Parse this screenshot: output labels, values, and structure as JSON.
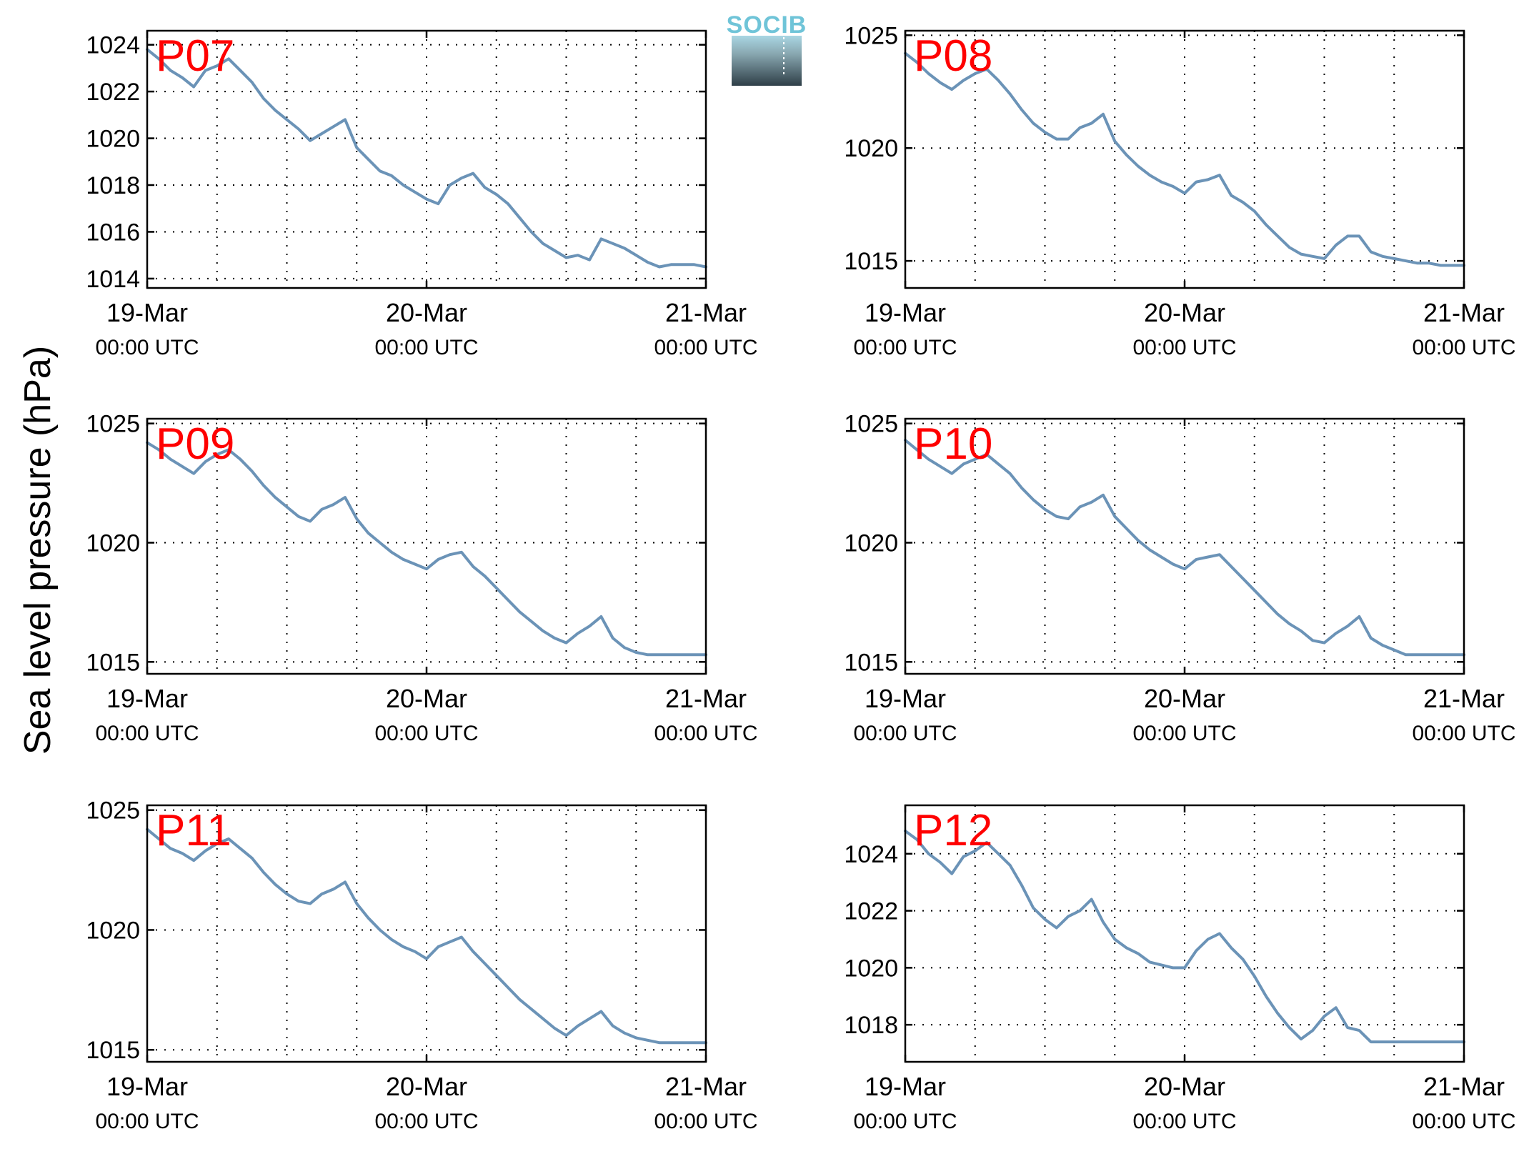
{
  "figure": {
    "ylabel": "Sea level pressure (hPa)",
    "logo": {
      "text": "SOCIB"
    }
  },
  "chart_data": [
    {
      "type": "line",
      "title": "P07",
      "xticks": [
        {
          "x": 0,
          "date": "19-Mar",
          "time": "00:00 UTC"
        },
        {
          "x": 24,
          "date": "20-Mar",
          "time": "00:00 UTC"
        },
        {
          "x": 48,
          "date": "21-Mar",
          "time": "00:00 UTC"
        }
      ],
      "xlim": [
        0,
        48
      ],
      "ylim": [
        1013.6,
        1024.6
      ],
      "yticks": [
        1014,
        1016,
        1018,
        1020,
        1022,
        1024
      ],
      "grid": true,
      "series": [
        {
          "x": [
            0,
            1,
            2,
            3,
            4,
            5,
            6,
            7,
            8,
            9,
            10,
            11,
            12,
            13,
            14,
            15,
            16,
            17,
            18,
            19,
            20,
            21,
            22,
            23,
            24,
            25,
            26,
            27,
            28,
            29,
            30,
            31,
            32,
            33,
            34,
            35,
            36,
            37,
            38,
            39,
            40,
            41,
            42,
            43,
            44,
            45,
            46,
            47,
            48
          ],
          "y": [
            1023.8,
            1023.4,
            1022.9,
            1022.6,
            1022.2,
            1022.9,
            1023.1,
            1023.4,
            1022.9,
            1022.4,
            1021.7,
            1021.2,
            1020.8,
            1020.4,
            1019.9,
            1020.2,
            1020.5,
            1020.8,
            1019.6,
            1019.1,
            1018.6,
            1018.4,
            1018.0,
            1017.7,
            1017.4,
            1017.2,
            1018.0,
            1018.3,
            1018.5,
            1017.9,
            1017.6,
            1017.2,
            1016.6,
            1016.0,
            1015.5,
            1015.2,
            1014.9,
            1015.0,
            1014.8,
            1015.7,
            1015.5,
            1015.3,
            1015.0,
            1014.7,
            1014.5,
            1014.6,
            1014.6,
            1014.6,
            1014.5
          ]
        }
      ]
    },
    {
      "type": "line",
      "title": "P08",
      "xticks": [
        {
          "x": 0,
          "date": "19-Mar",
          "time": "00:00 UTC"
        },
        {
          "x": 24,
          "date": "20-Mar",
          "time": "00:00 UTC"
        },
        {
          "x": 48,
          "date": "21-Mar",
          "time": "00:00 UTC"
        }
      ],
      "xlim": [
        0,
        48
      ],
      "ylim": [
        1013.8,
        1025.2
      ],
      "yticks": [
        1015,
        1020,
        1025
      ],
      "grid": true,
      "series": [
        {
          "x": [
            0,
            1,
            2,
            3,
            4,
            5,
            6,
            7,
            8,
            9,
            10,
            11,
            12,
            13,
            14,
            15,
            16,
            17,
            18,
            19,
            20,
            21,
            22,
            23,
            24,
            25,
            26,
            27,
            28,
            29,
            30,
            31,
            32,
            33,
            34,
            35,
            36,
            37,
            38,
            39,
            40,
            41,
            42,
            43,
            44,
            45,
            46,
            47,
            48
          ],
          "y": [
            1024.2,
            1023.8,
            1023.3,
            1022.9,
            1022.6,
            1023.0,
            1023.3,
            1023.5,
            1023.0,
            1022.4,
            1021.7,
            1021.1,
            1020.7,
            1020.4,
            1020.4,
            1020.9,
            1021.1,
            1021.5,
            1020.3,
            1019.7,
            1019.2,
            1018.8,
            1018.5,
            1018.3,
            1018.0,
            1018.5,
            1018.6,
            1018.8,
            1017.9,
            1017.6,
            1017.2,
            1016.6,
            1016.1,
            1015.6,
            1015.3,
            1015.2,
            1015.1,
            1015.7,
            1016.1,
            1016.1,
            1015.4,
            1015.2,
            1015.1,
            1015.0,
            1014.9,
            1014.9,
            1014.8,
            1014.8,
            1014.8
          ]
        }
      ]
    },
    {
      "type": "line",
      "title": "P09",
      "xticks": [
        {
          "x": 0,
          "date": "19-Mar",
          "time": "00:00 UTC"
        },
        {
          "x": 24,
          "date": "20-Mar",
          "time": "00:00 UTC"
        },
        {
          "x": 48,
          "date": "21-Mar",
          "time": "00:00 UTC"
        }
      ],
      "xlim": [
        0,
        48
      ],
      "ylim": [
        1014.5,
        1025.2
      ],
      "yticks": [
        1015,
        1020,
        1025
      ],
      "grid": true,
      "series": [
        {
          "x": [
            0,
            1,
            2,
            3,
            4,
            5,
            6,
            7,
            8,
            9,
            10,
            11,
            12,
            13,
            14,
            15,
            16,
            17,
            18,
            19,
            20,
            21,
            22,
            23,
            24,
            25,
            26,
            27,
            28,
            29,
            30,
            31,
            32,
            33,
            34,
            35,
            36,
            37,
            38,
            39,
            40,
            41,
            42,
            43,
            44,
            45,
            46,
            47,
            48
          ],
          "y": [
            1024.2,
            1023.9,
            1023.5,
            1023.2,
            1022.9,
            1023.4,
            1023.7,
            1023.9,
            1023.5,
            1023.0,
            1022.4,
            1021.9,
            1021.5,
            1021.1,
            1020.9,
            1021.4,
            1021.6,
            1021.9,
            1021.0,
            1020.4,
            1020.0,
            1019.6,
            1019.3,
            1019.1,
            1018.9,
            1019.3,
            1019.5,
            1019.6,
            1019.0,
            1018.6,
            1018.1,
            1017.6,
            1017.1,
            1016.7,
            1016.3,
            1016.0,
            1015.8,
            1016.2,
            1016.5,
            1016.9,
            1016.0,
            1015.6,
            1015.4,
            1015.3,
            1015.3,
            1015.3,
            1015.3,
            1015.3,
            1015.3
          ]
        }
      ]
    },
    {
      "type": "line",
      "title": "P10",
      "xticks": [
        {
          "x": 0,
          "date": "19-Mar",
          "time": "00:00 UTC"
        },
        {
          "x": 24,
          "date": "20-Mar",
          "time": "00:00 UTC"
        },
        {
          "x": 48,
          "date": "21-Mar",
          "time": "00:00 UTC"
        }
      ],
      "xlim": [
        0,
        48
      ],
      "ylim": [
        1014.5,
        1025.2
      ],
      "yticks": [
        1015,
        1020,
        1025
      ],
      "grid": true,
      "series": [
        {
          "x": [
            0,
            1,
            2,
            3,
            4,
            5,
            6,
            7,
            8,
            9,
            10,
            11,
            12,
            13,
            14,
            15,
            16,
            17,
            18,
            19,
            20,
            21,
            22,
            23,
            24,
            25,
            26,
            27,
            28,
            29,
            30,
            31,
            32,
            33,
            34,
            35,
            36,
            37,
            38,
            39,
            40,
            41,
            42,
            43,
            44,
            45,
            46,
            47,
            48
          ],
          "y": [
            1024.3,
            1023.9,
            1023.5,
            1023.2,
            1022.9,
            1023.3,
            1023.5,
            1023.7,
            1023.3,
            1022.9,
            1022.3,
            1021.8,
            1021.4,
            1021.1,
            1021.0,
            1021.5,
            1021.7,
            1022.0,
            1021.1,
            1020.6,
            1020.1,
            1019.7,
            1019.4,
            1019.1,
            1018.9,
            1019.3,
            1019.4,
            1019.5,
            1019.0,
            1018.5,
            1018.0,
            1017.5,
            1017.0,
            1016.6,
            1016.3,
            1015.9,
            1015.8,
            1016.2,
            1016.5,
            1016.9,
            1016.0,
            1015.7,
            1015.5,
            1015.3,
            1015.3,
            1015.3,
            1015.3,
            1015.3,
            1015.3
          ]
        }
      ]
    },
    {
      "type": "line",
      "title": "P11",
      "xticks": [
        {
          "x": 0,
          "date": "19-Mar",
          "time": "00:00 UTC"
        },
        {
          "x": 24,
          "date": "20-Mar",
          "time": "00:00 UTC"
        },
        {
          "x": 48,
          "date": "21-Mar",
          "time": "00:00 UTC"
        }
      ],
      "xlim": [
        0,
        48
      ],
      "ylim": [
        1014.5,
        1025.2
      ],
      "yticks": [
        1015,
        1020,
        1025
      ],
      "grid": true,
      "series": [
        {
          "x": [
            0,
            1,
            2,
            3,
            4,
            5,
            6,
            7,
            8,
            9,
            10,
            11,
            12,
            13,
            14,
            15,
            16,
            17,
            18,
            19,
            20,
            21,
            22,
            23,
            24,
            25,
            26,
            27,
            28,
            29,
            30,
            31,
            32,
            33,
            34,
            35,
            36,
            37,
            38,
            39,
            40,
            41,
            42,
            43,
            44,
            45,
            46,
            47,
            48
          ],
          "y": [
            1024.2,
            1023.8,
            1023.4,
            1023.2,
            1022.9,
            1023.3,
            1023.6,
            1023.8,
            1023.4,
            1023.0,
            1022.4,
            1021.9,
            1021.5,
            1021.2,
            1021.1,
            1021.5,
            1021.7,
            1022.0,
            1021.1,
            1020.5,
            1020.0,
            1019.6,
            1019.3,
            1019.1,
            1018.8,
            1019.3,
            1019.5,
            1019.7,
            1019.1,
            1018.6,
            1018.1,
            1017.6,
            1017.1,
            1016.7,
            1016.3,
            1015.9,
            1015.6,
            1016.0,
            1016.3,
            1016.6,
            1016.0,
            1015.7,
            1015.5,
            1015.4,
            1015.3,
            1015.3,
            1015.3,
            1015.3,
            1015.3
          ]
        }
      ]
    },
    {
      "type": "line",
      "title": "P12",
      "xticks": [
        {
          "x": 0,
          "date": "19-Mar",
          "time": "00:00 UTC"
        },
        {
          "x": 24,
          "date": "20-Mar",
          "time": "00:00 UTC"
        },
        {
          "x": 48,
          "date": "21-Mar",
          "time": "00:00 UTC"
        }
      ],
      "xlim": [
        0,
        48
      ],
      "ylim": [
        1016.7,
        1025.7
      ],
      "yticks": [
        1018,
        1020,
        1022,
        1024
      ],
      "grid": true,
      "series": [
        {
          "x": [
            0,
            1,
            2,
            3,
            4,
            5,
            6,
            7,
            8,
            9,
            10,
            11,
            12,
            13,
            14,
            15,
            16,
            17,
            18,
            19,
            20,
            21,
            22,
            23,
            24,
            25,
            26,
            27,
            28,
            29,
            30,
            31,
            32,
            33,
            34,
            35,
            36,
            37,
            38,
            39,
            40,
            41,
            42,
            43,
            44,
            45,
            46,
            47,
            48
          ],
          "y": [
            1024.8,
            1024.5,
            1024.0,
            1023.7,
            1023.3,
            1023.9,
            1024.1,
            1024.4,
            1024.0,
            1023.6,
            1022.9,
            1022.1,
            1021.7,
            1021.4,
            1021.8,
            1022.0,
            1022.4,
            1021.6,
            1021.0,
            1020.7,
            1020.5,
            1020.2,
            1020.1,
            1020.0,
            1020.0,
            1020.6,
            1021.0,
            1021.2,
            1020.7,
            1020.3,
            1019.7,
            1019.0,
            1018.4,
            1017.9,
            1017.5,
            1017.8,
            1018.3,
            1018.6,
            1017.9,
            1017.8,
            1017.4,
            1017.4,
            1017.4,
            1017.4,
            1017.4,
            1017.4,
            1017.4,
            1017.4,
            1017.4
          ]
        }
      ]
    }
  ]
}
